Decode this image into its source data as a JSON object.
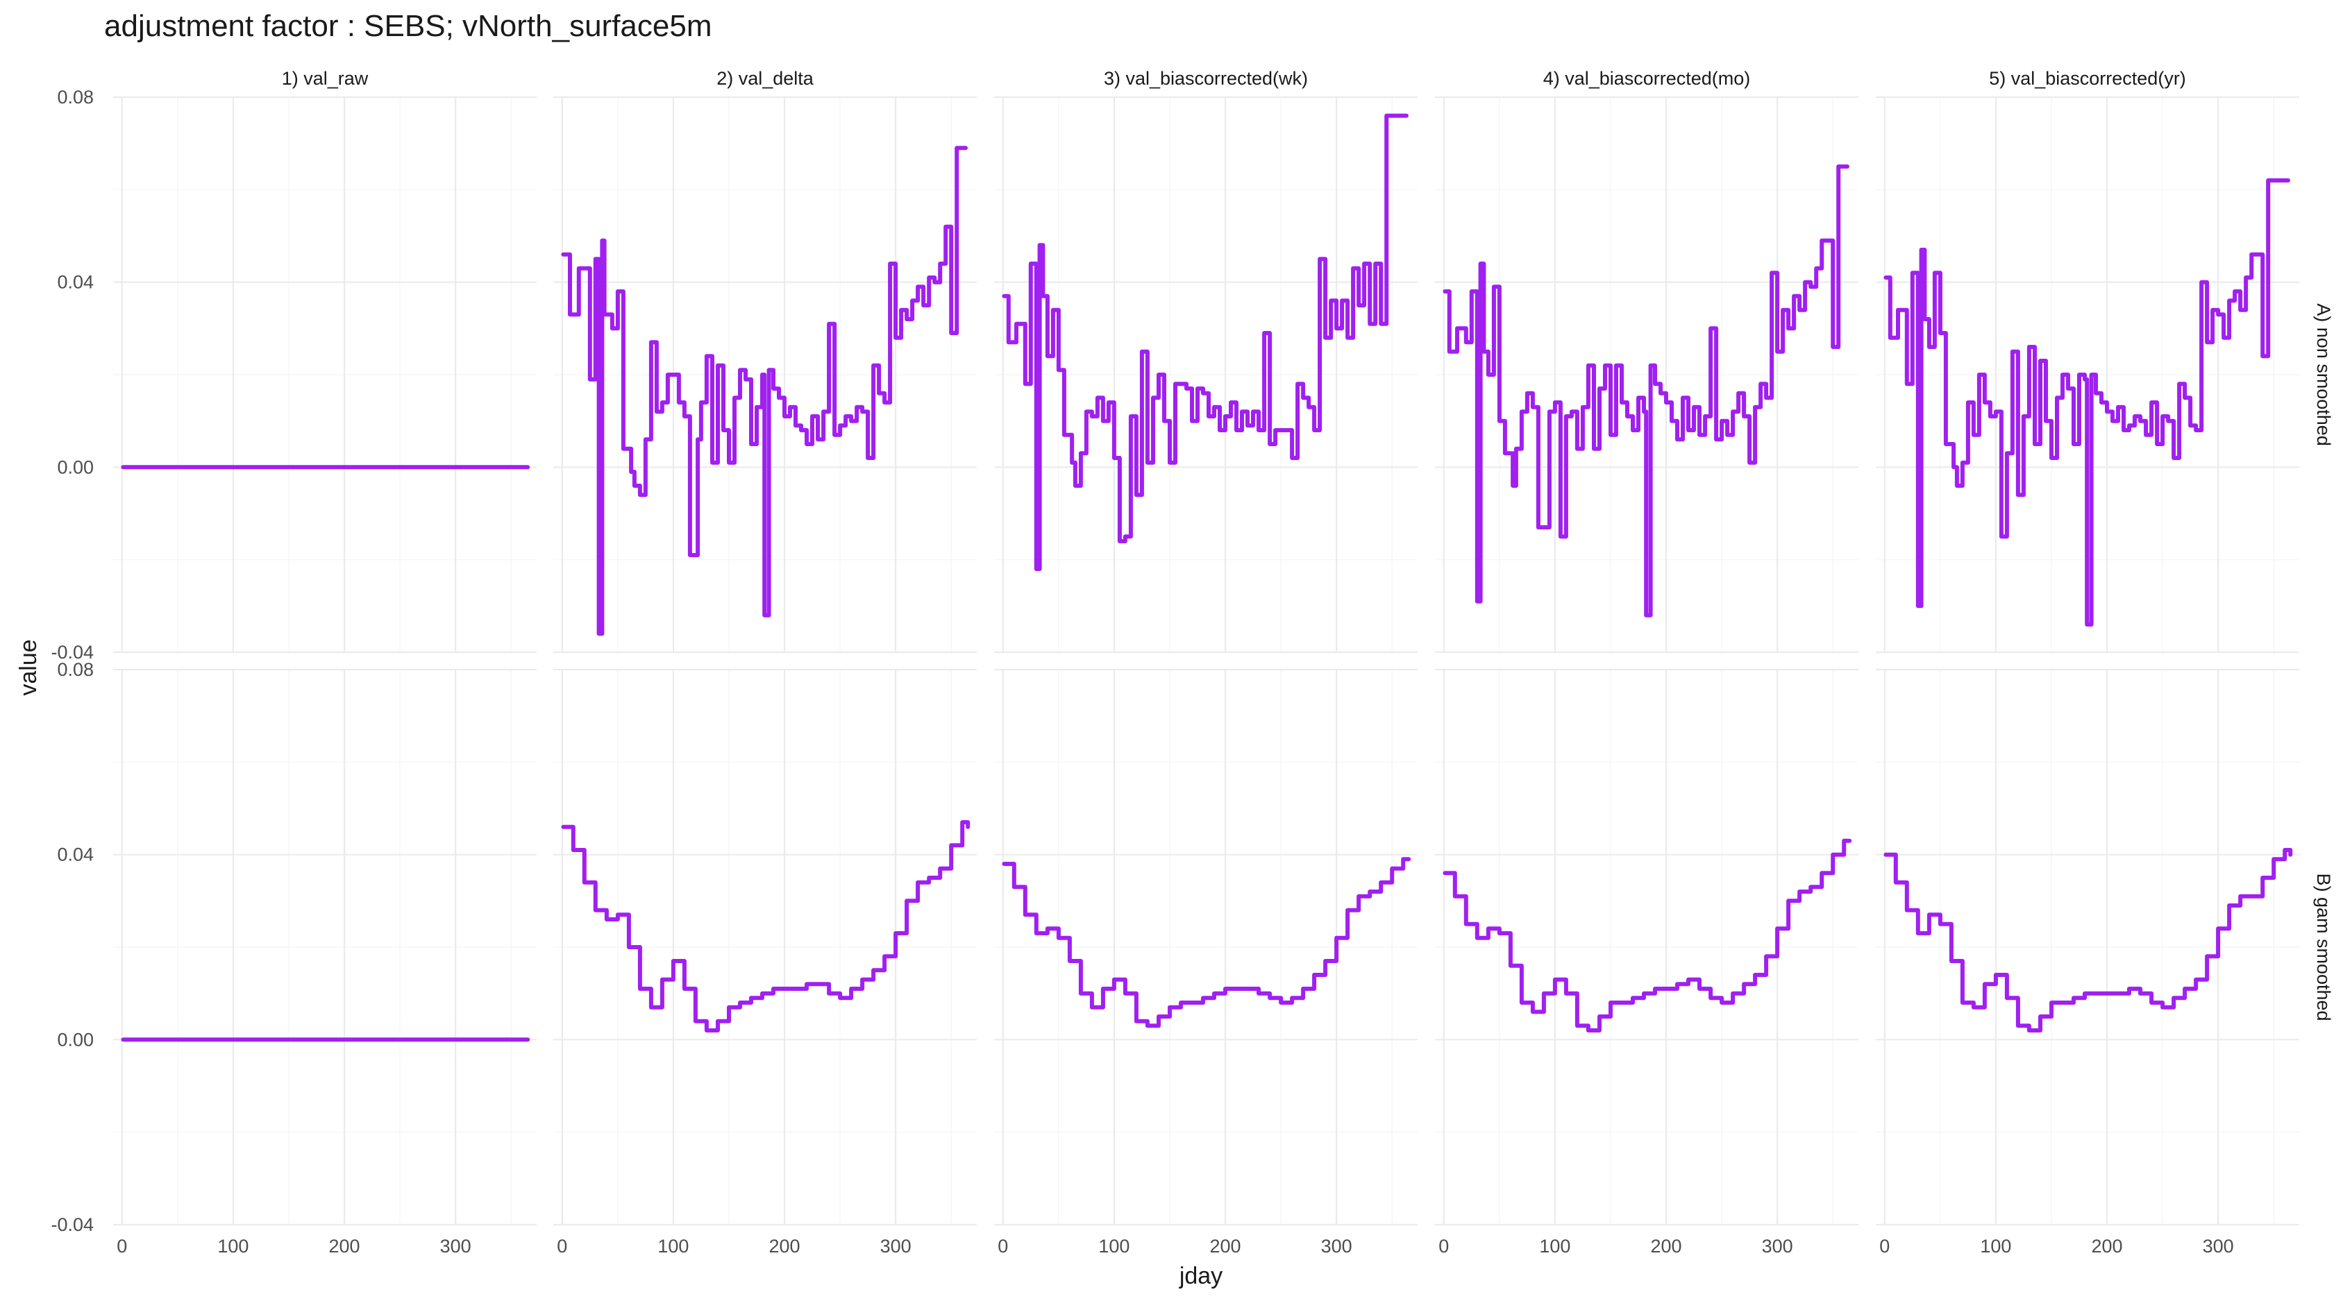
{
  "chart_data": {
    "type": "line",
    "title": "adjustment factor : SEBS; vNorth_surface5m",
    "xlabel": "jday",
    "ylabel": "value",
    "xlim": [
      -8,
      373
    ],
    "ylim": [
      -0.04,
      0.08
    ],
    "xticks": [
      0,
      100,
      200,
      300
    ],
    "yticks": [
      -0.04,
      0.0,
      0.04,
      0.08
    ],
    "ytick_labels": [
      "-0.04",
      "0.00",
      "0.04",
      "0.08"
    ],
    "grid": true,
    "line_color": "#A020F0",
    "columns": [
      "1) val_raw",
      "2) val_delta",
      "3) val_biascorrected(wk)",
      "4) val_biascorrected(mo)",
      "5) val_biascorrected(yr)"
    ],
    "rows": [
      "A) non smoothed",
      "B) gam smoothed"
    ],
    "panels": [
      {
        "row": 0,
        "col": 0,
        "x": [
          1,
          365
        ],
        "y": [
          0.0,
          0.0
        ]
      },
      {
        "row": 0,
        "col": 1,
        "x": [
          1,
          7,
          15,
          25,
          30,
          33,
          36,
          38,
          45,
          50,
          55,
          62,
          65,
          70,
          75,
          80,
          85,
          90,
          95,
          100,
          105,
          110,
          115,
          120,
          122,
          125,
          130,
          135,
          140,
          145,
          150,
          155,
          160,
          165,
          170,
          175,
          180,
          182,
          186,
          190,
          195,
          200,
          205,
          210,
          215,
          220,
          225,
          230,
          235,
          240,
          245,
          250,
          255,
          260,
          265,
          270,
          275,
          280,
          285,
          290,
          295,
          300,
          305,
          310,
          315,
          320,
          325,
          330,
          335,
          340,
          345,
          350,
          355,
          360,
          363
        ],
        "y": [
          0.046,
          0.033,
          0.043,
          0.019,
          0.045,
          -0.036,
          0.049,
          0.033,
          0.03,
          0.038,
          0.004,
          -0.001,
          -0.004,
          -0.006,
          0.006,
          0.027,
          0.012,
          0.014,
          0.02,
          0.02,
          0.014,
          0.011,
          -0.019,
          -0.019,
          0.006,
          0.014,
          0.024,
          0.001,
          0.022,
          0.008,
          0.001,
          0.015,
          0.021,
          0.019,
          0.005,
          0.013,
          0.02,
          -0.032,
          0.021,
          0.017,
          0.015,
          0.011,
          0.013,
          0.009,
          0.008,
          0.005,
          0.011,
          0.006,
          0.012,
          0.031,
          0.007,
          0.009,
          0.011,
          0.01,
          0.013,
          0.012,
          0.002,
          0.022,
          0.016,
          0.014,
          0.044,
          0.028,
          0.034,
          0.032,
          0.036,
          0.039,
          0.035,
          0.041,
          0.04,
          0.044,
          0.052,
          0.029,
          0.069,
          0.069,
          0.069
        ]
      },
      {
        "row": 0,
        "col": 2,
        "x": [
          1,
          5,
          12,
          20,
          25,
          30,
          33,
          36,
          40,
          45,
          50,
          55,
          62,
          65,
          70,
          75,
          80,
          85,
          90,
          95,
          100,
          105,
          110,
          115,
          120,
          125,
          130,
          135,
          140,
          145,
          150,
          155,
          160,
          165,
          170,
          175,
          180,
          185,
          190,
          195,
          200,
          205,
          210,
          215,
          220,
          225,
          230,
          235,
          240,
          245,
          250,
          255,
          260,
          265,
          270,
          275,
          280,
          285,
          290,
          295,
          300,
          305,
          310,
          315,
          320,
          325,
          330,
          335,
          340,
          345,
          350,
          355,
          360,
          363
        ],
        "y": [
          0.037,
          0.027,
          0.031,
          0.018,
          0.044,
          -0.022,
          0.048,
          0.037,
          0.024,
          0.034,
          0.021,
          0.007,
          0.001,
          -0.004,
          0.003,
          0.012,
          0.011,
          0.015,
          0.01,
          0.014,
          0.002,
          -0.016,
          -0.015,
          0.011,
          -0.006,
          0.025,
          0.001,
          0.015,
          0.02,
          0.01,
          0.001,
          0.018,
          0.018,
          0.017,
          0.01,
          0.017,
          0.016,
          0.011,
          0.013,
          0.008,
          0.011,
          0.014,
          0.008,
          0.012,
          0.009,
          0.012,
          0.008,
          0.029,
          0.005,
          0.008,
          0.008,
          0.008,
          0.002,
          0.018,
          0.015,
          0.013,
          0.008,
          0.045,
          0.028,
          0.036,
          0.03,
          0.036,
          0.028,
          0.043,
          0.035,
          0.044,
          0.031,
          0.044,
          0.031,
          0.076,
          0.076,
          0.076,
          0.076,
          0.076
        ]
      },
      {
        "row": 0,
        "col": 3,
        "x": [
          1,
          5,
          12,
          20,
          25,
          30,
          33,
          36,
          40,
          45,
          50,
          55,
          62,
          65,
          70,
          75,
          80,
          85,
          90,
          95,
          100,
          105,
          110,
          115,
          120,
          125,
          130,
          135,
          140,
          145,
          150,
          155,
          160,
          165,
          170,
          175,
          180,
          182,
          186,
          190,
          195,
          200,
          205,
          210,
          215,
          220,
          225,
          230,
          235,
          240,
          245,
          250,
          255,
          260,
          265,
          270,
          275,
          280,
          285,
          290,
          295,
          300,
          305,
          310,
          315,
          320,
          325,
          330,
          335,
          340,
          345,
          350,
          355,
          360,
          363
        ],
        "y": [
          0.038,
          0.025,
          0.03,
          0.027,
          0.038,
          -0.029,
          0.044,
          0.025,
          0.02,
          0.039,
          0.01,
          0.003,
          -0.004,
          0.004,
          0.012,
          0.016,
          0.013,
          -0.013,
          -0.013,
          0.012,
          0.014,
          -0.015,
          0.011,
          0.012,
          0.004,
          0.013,
          0.022,
          0.004,
          0.017,
          0.022,
          0.007,
          0.022,
          0.014,
          0.011,
          0.008,
          0.015,
          0.012,
          -0.032,
          0.022,
          0.018,
          0.016,
          0.014,
          0.01,
          0.006,
          0.015,
          0.008,
          0.013,
          0.007,
          0.011,
          0.03,
          0.006,
          0.01,
          0.007,
          0.012,
          0.016,
          0.011,
          0.001,
          0.013,
          0.018,
          0.015,
          0.042,
          0.025,
          0.034,
          0.03,
          0.037,
          0.034,
          0.04,
          0.039,
          0.043,
          0.049,
          0.049,
          0.026,
          0.065,
          0.065,
          0.065
        ]
      },
      {
        "row": 0,
        "col": 4,
        "x": [
          1,
          5,
          12,
          20,
          25,
          30,
          33,
          36,
          40,
          45,
          50,
          55,
          62,
          65,
          70,
          75,
          80,
          85,
          90,
          95,
          100,
          105,
          110,
          115,
          120,
          125,
          130,
          135,
          140,
          145,
          150,
          155,
          160,
          165,
          170,
          175,
          180,
          182,
          186,
          190,
          195,
          200,
          205,
          210,
          215,
          220,
          225,
          230,
          235,
          240,
          245,
          250,
          255,
          260,
          265,
          270,
          275,
          280,
          285,
          290,
          295,
          300,
          305,
          310,
          315,
          320,
          325,
          330,
          335,
          340,
          345,
          350,
          355,
          360,
          363
        ],
        "y": [
          0.041,
          0.028,
          0.034,
          0.018,
          0.042,
          -0.03,
          0.047,
          0.032,
          0.026,
          0.042,
          0.029,
          0.005,
          0.0,
          -0.004,
          0.001,
          0.014,
          0.007,
          0.02,
          0.014,
          0.011,
          0.012,
          -0.015,
          0.003,
          0.025,
          -0.006,
          0.011,
          0.026,
          0.005,
          0.023,
          0.01,
          0.002,
          0.015,
          0.02,
          0.017,
          0.005,
          0.02,
          0.019,
          -0.034,
          0.02,
          0.016,
          0.014,
          0.012,
          0.01,
          0.013,
          0.008,
          0.009,
          0.011,
          0.01,
          0.007,
          0.014,
          0.005,
          0.011,
          0.01,
          0.002,
          0.018,
          0.015,
          0.009,
          0.008,
          0.04,
          0.027,
          0.034,
          0.033,
          0.028,
          0.036,
          0.038,
          0.034,
          0.041,
          0.046,
          0.046,
          0.024,
          0.062,
          0.062,
          0.062,
          0.062,
          0.062
        ]
      },
      {
        "row": 1,
        "col": 0,
        "x": [
          1,
          365
        ],
        "y": [
          0.0,
          0.0
        ]
      },
      {
        "row": 1,
        "col": 1,
        "x": [
          1,
          10,
          20,
          30,
          40,
          50,
          60,
          70,
          80,
          90,
          100,
          110,
          120,
          130,
          140,
          150,
          160,
          170,
          180,
          190,
          200,
          210,
          220,
          230,
          240,
          250,
          260,
          270,
          280,
          290,
          300,
          310,
          320,
          330,
          340,
          350,
          360,
          365
        ],
        "y": [
          0.046,
          0.041,
          0.034,
          0.028,
          0.026,
          0.027,
          0.02,
          0.011,
          0.007,
          0.013,
          0.017,
          0.011,
          0.004,
          0.002,
          0.004,
          0.007,
          0.008,
          0.009,
          0.01,
          0.011,
          0.011,
          0.011,
          0.012,
          0.012,
          0.01,
          0.009,
          0.011,
          0.013,
          0.015,
          0.018,
          0.023,
          0.03,
          0.034,
          0.035,
          0.037,
          0.042,
          0.047,
          0.046
        ]
      },
      {
        "row": 1,
        "col": 2,
        "x": [
          1,
          10,
          20,
          30,
          40,
          50,
          60,
          70,
          80,
          90,
          100,
          110,
          120,
          130,
          140,
          150,
          160,
          170,
          180,
          190,
          200,
          210,
          220,
          230,
          240,
          250,
          260,
          270,
          280,
          290,
          300,
          310,
          320,
          330,
          340,
          350,
          360,
          365
        ],
        "y": [
          0.038,
          0.033,
          0.027,
          0.023,
          0.024,
          0.022,
          0.017,
          0.01,
          0.007,
          0.011,
          0.013,
          0.01,
          0.004,
          0.003,
          0.005,
          0.007,
          0.008,
          0.008,
          0.009,
          0.01,
          0.011,
          0.011,
          0.011,
          0.01,
          0.009,
          0.008,
          0.009,
          0.011,
          0.014,
          0.017,
          0.022,
          0.028,
          0.031,
          0.032,
          0.034,
          0.037,
          0.039,
          0.039
        ]
      },
      {
        "row": 1,
        "col": 3,
        "x": [
          1,
          10,
          20,
          30,
          40,
          50,
          60,
          70,
          80,
          90,
          100,
          110,
          120,
          130,
          140,
          150,
          160,
          170,
          180,
          190,
          200,
          210,
          220,
          230,
          240,
          250,
          260,
          270,
          280,
          290,
          300,
          310,
          320,
          330,
          340,
          350,
          360,
          365
        ],
        "y": [
          0.036,
          0.031,
          0.025,
          0.022,
          0.024,
          0.023,
          0.016,
          0.008,
          0.006,
          0.01,
          0.013,
          0.01,
          0.003,
          0.002,
          0.005,
          0.008,
          0.008,
          0.009,
          0.01,
          0.011,
          0.011,
          0.012,
          0.013,
          0.011,
          0.009,
          0.008,
          0.01,
          0.012,
          0.014,
          0.018,
          0.024,
          0.03,
          0.032,
          0.033,
          0.036,
          0.04,
          0.043,
          0.043
        ]
      },
      {
        "row": 1,
        "col": 4,
        "x": [
          1,
          10,
          20,
          30,
          40,
          50,
          60,
          70,
          80,
          90,
          100,
          110,
          120,
          130,
          140,
          150,
          160,
          170,
          180,
          190,
          200,
          210,
          220,
          230,
          240,
          250,
          260,
          270,
          280,
          290,
          300,
          310,
          320,
          330,
          340,
          350,
          360,
          365
        ],
        "y": [
          0.04,
          0.034,
          0.028,
          0.023,
          0.027,
          0.025,
          0.017,
          0.008,
          0.007,
          0.012,
          0.014,
          0.009,
          0.003,
          0.002,
          0.005,
          0.008,
          0.008,
          0.009,
          0.01,
          0.01,
          0.01,
          0.01,
          0.011,
          0.01,
          0.008,
          0.007,
          0.009,
          0.011,
          0.013,
          0.018,
          0.024,
          0.029,
          0.031,
          0.031,
          0.035,
          0.039,
          0.041,
          0.04
        ]
      }
    ]
  }
}
